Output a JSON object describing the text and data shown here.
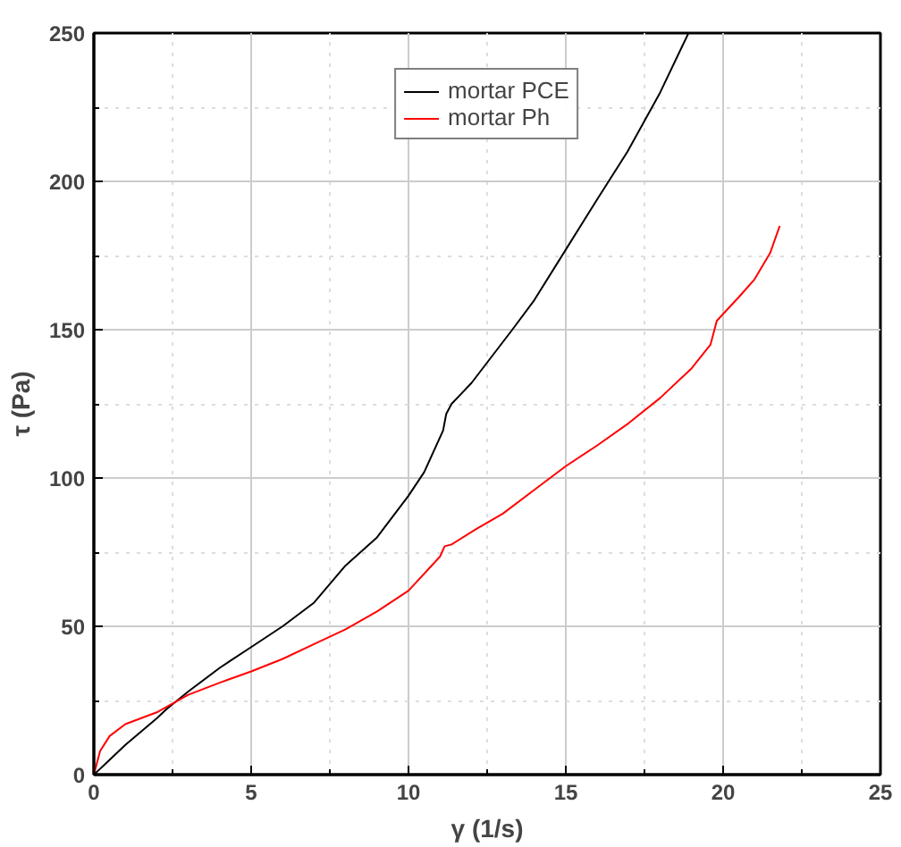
{
  "chart_data": {
    "type": "line",
    "xlabel": "γ (1/s)",
    "ylabel": "τ (Pa)",
    "xlim": [
      0,
      25
    ],
    "ylim": [
      0,
      250
    ],
    "xticks": [
      0,
      5,
      10,
      15,
      20,
      25
    ],
    "yticks": [
      0,
      50,
      100,
      150,
      200,
      250
    ],
    "grid": true,
    "legend": "top",
    "marker": "none",
    "line_style": "solid",
    "series": [
      {
        "name": "mortar PCE",
        "color": "#000000",
        "x": [
          0,
          0.5,
          1,
          2,
          2.3,
          3,
          4,
          5,
          6,
          7,
          8,
          9,
          10,
          10.5,
          10.8,
          11.1,
          11.2,
          11.37,
          12,
          13.3,
          14,
          15,
          16,
          16.96,
          18,
          18.9
        ],
        "values": [
          0,
          5,
          10,
          19,
          22,
          28,
          36,
          43,
          50,
          58,
          70.5,
          80,
          94,
          102,
          109,
          116,
          121.6,
          125,
          132,
          150,
          160,
          177,
          194,
          210,
          230,
          250
        ]
      },
      {
        "name": "mortar Ph",
        "color": "#ff0000",
        "x": [
          0,
          0.2,
          0.5,
          1,
          2,
          3,
          4,
          5,
          6,
          7,
          8,
          9,
          10,
          11,
          11.15,
          11.37,
          12.14,
          13,
          14,
          15,
          16,
          17,
          18,
          19,
          19.6,
          19.8,
          20.5,
          21,
          21.5,
          21.8
        ],
        "values": [
          0,
          8,
          13,
          17,
          21,
          26.9,
          31,
          34.8,
          39,
          44,
          49,
          55,
          62,
          73.5,
          77,
          77.6,
          82.7,
          88,
          96,
          104,
          111,
          118.5,
          127,
          137,
          145,
          153,
          161,
          167,
          176,
          185
        ]
      }
    ]
  }
}
